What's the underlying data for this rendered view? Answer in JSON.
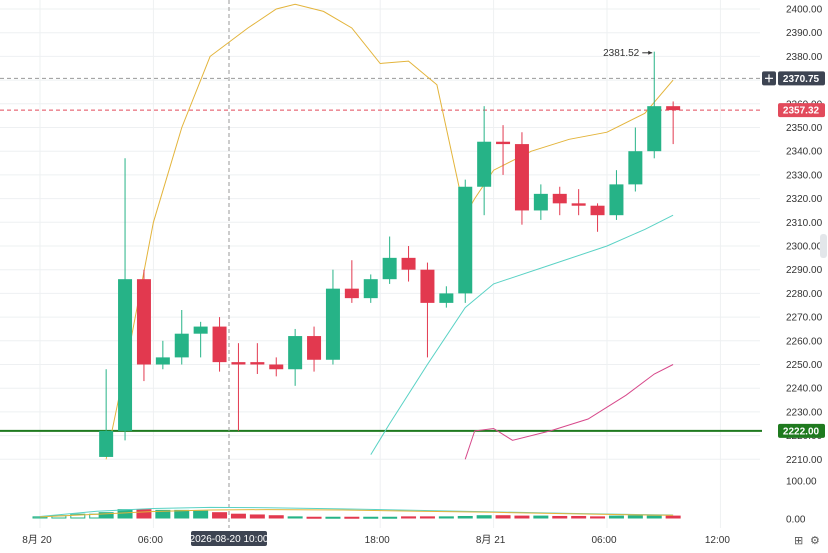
{
  "chart_data": {
    "type": "candlestick",
    "price_axis": {
      "ylim": [
        2203,
        2403
      ],
      "ticks": [
        "2210.00",
        "2220.00",
        "2230.00",
        "2240.00",
        "2250.00",
        "2260.00",
        "2270.00",
        "2280.00",
        "2290.00",
        "2300.00",
        "2310.00",
        "2320.00",
        "2330.00",
        "2340.00",
        "2350.00",
        "2360.00",
        "2370.00",
        "2380.00",
        "2390.00",
        "2400.00"
      ]
    },
    "volume_axis": {
      "ylim": [
        0,
        125
      ],
      "ticks": [
        "0.00",
        "100.00"
      ]
    },
    "x_axis": {
      "ticks": [
        {
          "label": "8月 20",
          "t": 0
        },
        {
          "label": "06:00",
          "t": 6
        },
        {
          "label": "18:00",
          "t": 18
        },
        {
          "label": "8月 21",
          "t": 24
        },
        {
          "label": "06:00",
          "t": 30
        },
        {
          "label": "12:00",
          "t": 36
        }
      ],
      "hidden_tick": {
        "label": "12:00",
        "t": 12
      }
    },
    "candles": [
      {
        "t": 3.5,
        "o": 2211,
        "h": 2248,
        "l": 2211,
        "c": 2222
      },
      {
        "t": 4.5,
        "o": 2222,
        "h": 2337,
        "l": 2218,
        "c": 2286
      },
      {
        "t": 5.5,
        "o": 2286,
        "h": 2290,
        "l": 2243,
        "c": 2250
      },
      {
        "t": 6.5,
        "o": 2250,
        "h": 2260,
        "l": 2248,
        "c": 2253
      },
      {
        "t": 7.5,
        "o": 2253,
        "h": 2273,
        "l": 2250,
        "c": 2263
      },
      {
        "t": 8.5,
        "o": 2263,
        "h": 2268,
        "l": 2253,
        "c": 2266
      },
      {
        "t": 9.5,
        "o": 2266,
        "h": 2270,
        "l": 2247,
        "c": 2251
      },
      {
        "t": 10.5,
        "o": 2251,
        "h": 2259,
        "l": 2222,
        "c": 2250
      },
      {
        "t": 11.5,
        "o": 2251,
        "h": 2259,
        "l": 2246,
        "c": 2250
      },
      {
        "t": 12.5,
        "o": 2250,
        "h": 2253,
        "l": 2245,
        "c": 2248
      },
      {
        "t": 13.5,
        "o": 2248,
        "h": 2265,
        "l": 2241,
        "c": 2262
      },
      {
        "t": 14.5,
        "o": 2262,
        "h": 2266,
        "l": 2247,
        "c": 2252
      },
      {
        "t": 15.5,
        "o": 2252,
        "h": 2290,
        "l": 2250,
        "c": 2282
      },
      {
        "t": 16.5,
        "o": 2282,
        "h": 2294,
        "l": 2276,
        "c": 2278
      },
      {
        "t": 17.5,
        "o": 2278,
        "h": 2288,
        "l": 2276,
        "c": 2286
      },
      {
        "t": 18.5,
        "o": 2286,
        "h": 2304,
        "l": 2284,
        "c": 2295
      },
      {
        "t": 19.5,
        "o": 2295,
        "h": 2300,
        "l": 2285,
        "c": 2290
      },
      {
        "t": 20.5,
        "o": 2290,
        "h": 2293,
        "l": 2253,
        "c": 2276
      },
      {
        "t": 21.5,
        "o": 2276,
        "h": 2283,
        "l": 2274,
        "c": 2280
      },
      {
        "t": 22.5,
        "o": 2280,
        "h": 2328,
        "l": 2276,
        "c": 2325
      },
      {
        "t": 23.5,
        "o": 2325,
        "h": 2359,
        "l": 2313,
        "c": 2344
      },
      {
        "t": 24.5,
        "o": 2344,
        "h": 2351,
        "l": 2330,
        "c": 2343
      },
      {
        "t": 25.5,
        "o": 2343,
        "h": 2348,
        "l": 2309,
        "c": 2315
      },
      {
        "t": 26.5,
        "o": 2315,
        "h": 2326,
        "l": 2311,
        "c": 2322
      },
      {
        "t": 27.5,
        "o": 2322,
        "h": 2325,
        "l": 2313,
        "c": 2318
      },
      {
        "t": 28.5,
        "o": 2318,
        "h": 2324,
        "l": 2313,
        "c": 2317
      },
      {
        "t": 29.5,
        "o": 2317,
        "h": 2318,
        "l": 2306,
        "c": 2313
      },
      {
        "t": 30.5,
        "o": 2313,
        "h": 2332,
        "l": 2311,
        "c": 2326
      },
      {
        "t": 31.5,
        "o": 2326,
        "h": 2350,
        "l": 2323,
        "c": 2340
      },
      {
        "t": 32.5,
        "o": 2340,
        "h": 2382,
        "l": 2337,
        "c": 2359
      },
      {
        "t": 33.5,
        "o": 2359,
        "h": 2361,
        "l": 2343,
        "c": 2357.32
      }
    ],
    "volume": [
      {
        "t": 0,
        "v": 3
      },
      {
        "t": 1,
        "v": 6
      },
      {
        "t": 2,
        "v": 10
      },
      {
        "t": 3,
        "v": 10
      },
      {
        "t": 3.5,
        "v": 14
      },
      {
        "t": 4.5,
        "v": 22
      },
      {
        "t": 5.5,
        "v": 22
      },
      {
        "t": 6.5,
        "v": 20
      },
      {
        "t": 7.5,
        "v": 20
      },
      {
        "t": 8.5,
        "v": 18
      },
      {
        "t": 9.5,
        "v": 14
      },
      {
        "t": 10.5,
        "v": 10
      },
      {
        "t": 11.5,
        "v": 8
      },
      {
        "t": 12.5,
        "v": 6
      },
      {
        "t": 13.5,
        "v": 3
      },
      {
        "t": 14.5,
        "v": 2
      },
      {
        "t": 15.5,
        "v": 2
      },
      {
        "t": 16.5,
        "v": 2
      },
      {
        "t": 17.5,
        "v": 2
      },
      {
        "t": 18.5,
        "v": 2
      },
      {
        "t": 19.5,
        "v": 3
      },
      {
        "t": 20.5,
        "v": 3
      },
      {
        "t": 21.5,
        "v": 3
      },
      {
        "t": 22.5,
        "v": 4
      },
      {
        "t": 23.5,
        "v": 6
      },
      {
        "t": 24.5,
        "v": 6
      },
      {
        "t": 25.5,
        "v": 5
      },
      {
        "t": 26.5,
        "v": 5
      },
      {
        "t": 27.5,
        "v": 4
      },
      {
        "t": 28.5,
        "v": 4
      },
      {
        "t": 29.5,
        "v": 3
      },
      {
        "t": 30.5,
        "v": 5
      },
      {
        "t": 31.5,
        "v": 6
      },
      {
        "t": 32.5,
        "v": 5
      },
      {
        "t": 33.5,
        "v": 5
      }
    ],
    "ma_lines": [
      {
        "color": "#e3b43b",
        "points": [
          [
            3.5,
            2210
          ],
          [
            4.8,
            2260
          ],
          [
            6,
            2310
          ],
          [
            7.5,
            2350
          ],
          [
            9,
            2380
          ],
          [
            11,
            2392
          ],
          [
            12.5,
            2400
          ],
          [
            13.5,
            2402
          ],
          [
            15,
            2399
          ],
          [
            16.5,
            2392
          ],
          [
            18,
            2377
          ],
          [
            19.5,
            2378
          ],
          [
            21,
            2368
          ],
          [
            22.5,
            2313
          ],
          [
            23,
            2320
          ],
          [
            24,
            2332
          ],
          [
            26,
            2340
          ],
          [
            28,
            2345
          ],
          [
            30,
            2348
          ],
          [
            32,
            2356
          ],
          [
            33.5,
            2370
          ]
        ]
      },
      {
        "color": "#5ad2c5",
        "points": [
          [
            17.5,
            2212
          ],
          [
            18.5,
            2225
          ],
          [
            20.5,
            2250
          ],
          [
            22.5,
            2274
          ],
          [
            24,
            2284
          ],
          [
            27,
            2292
          ],
          [
            30,
            2300
          ],
          [
            32,
            2307
          ],
          [
            33.5,
            2313
          ]
        ]
      },
      {
        "color": "#d7498b",
        "points": [
          [
            22.5,
            2210
          ],
          [
            23,
            2222
          ],
          [
            24,
            2223
          ],
          [
            25,
            2218
          ],
          [
            27,
            2222
          ],
          [
            29,
            2227
          ],
          [
            31,
            2237
          ],
          [
            32.5,
            2246
          ],
          [
            33.5,
            2250
          ]
        ]
      }
    ],
    "volume_ma_lines": [
      {
        "color": "#5ad2c5",
        "points": [
          [
            0,
            4
          ],
          [
            3,
            18
          ],
          [
            6,
            25
          ],
          [
            9,
            28
          ],
          [
            12,
            27
          ],
          [
            16,
            24
          ],
          [
            20,
            20
          ],
          [
            24,
            16
          ],
          [
            28,
            12
          ],
          [
            32,
            9
          ],
          [
            33.5,
            8
          ]
        ]
      },
      {
        "color": "#e3b43b",
        "points": [
          [
            0,
            3
          ],
          [
            3,
            10
          ],
          [
            6,
            17
          ],
          [
            9,
            21
          ],
          [
            12,
            22
          ],
          [
            16,
            21
          ],
          [
            20,
            18
          ],
          [
            24,
            15
          ],
          [
            28,
            11
          ],
          [
            32,
            8
          ],
          [
            33.5,
            7
          ]
        ]
      }
    ],
    "horizontal_lines": [
      {
        "price": 2222.0,
        "label": "2222.00",
        "color": "#1f7a1f",
        "style": "solid"
      },
      {
        "price": 2370.75,
        "label": "2370.75",
        "color": "#9a9a9a",
        "style": "dashed"
      },
      {
        "price": 2357.32,
        "label": "2357.32",
        "color": "#e24a5b",
        "style": "dashed"
      }
    ],
    "crosshair": {
      "t": 10.0,
      "label": "2026-08-20 10:00"
    },
    "high_annotation": {
      "label": "2381.52",
      "t": 32.5,
      "price": 2381.52
    },
    "colors": {
      "up": "#26b387",
      "down": "#e2394f",
      "grid": "#eef0f2"
    }
  },
  "toolbar": {
    "icons": [
      "grid-icon",
      "settings-icon"
    ]
  }
}
